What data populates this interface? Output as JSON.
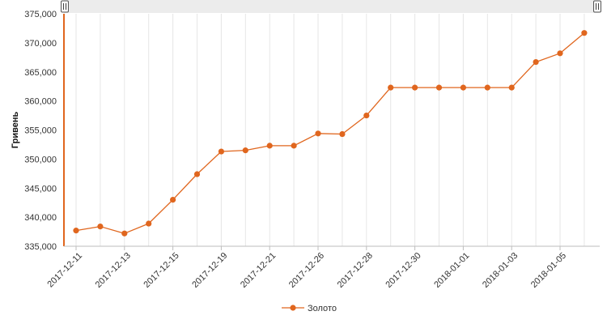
{
  "chart_data": {
    "type": "line",
    "title": "",
    "xlabel": "",
    "ylabel": "Гривень",
    "ylim": [
      335000,
      375000
    ],
    "yticks": [
      335000,
      340000,
      345000,
      350000,
      355000,
      360000,
      365000,
      370000,
      375000
    ],
    "ytick_labels": [
      "335,000",
      "340,000",
      "345,000",
      "350,000",
      "355,000",
      "360,000",
      "365,000",
      "370,000",
      "375,000"
    ],
    "x_tick_labels": [
      "2017-12-11",
      "2017-12-13",
      "2017-12-15",
      "2017-12-19",
      "2017-12-21",
      "2017-12-26",
      "2017-12-28",
      "2017-12-30",
      "2018-01-01",
      "2018-01-03",
      "2018-01-05"
    ],
    "x_tick_every": 2,
    "grid": "vertical",
    "legend_position": "bottom-center",
    "series": [
      {
        "name": "Золото",
        "color": "#e0661e",
        "values": [
          337700,
          338400,
          337200,
          338900,
          343000,
          347400,
          351300,
          351500,
          352300,
          352300,
          354400,
          354300,
          357500,
          362300,
          362300,
          362300,
          362300,
          362300,
          362300,
          366700,
          368200,
          371700
        ]
      }
    ]
  }
}
